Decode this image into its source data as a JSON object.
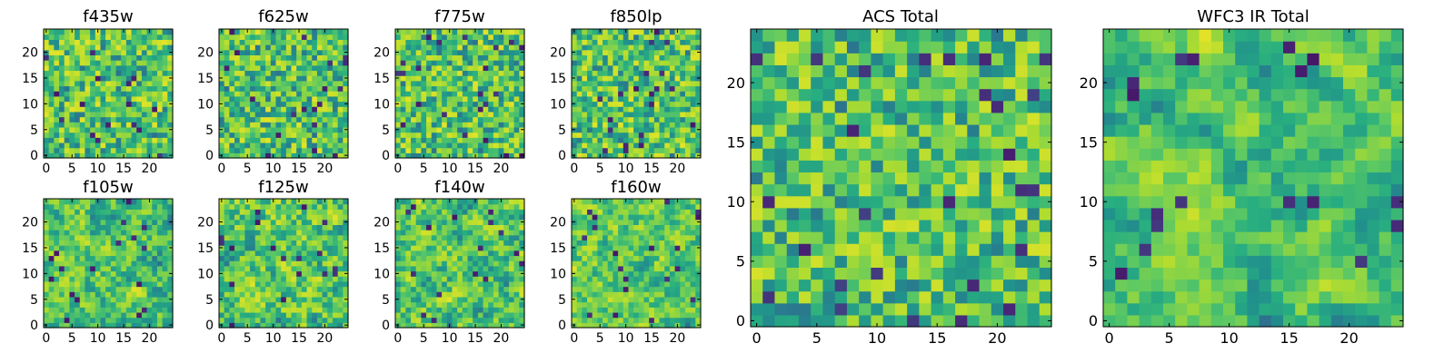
{
  "chart_data": [
    {
      "type": "heatmap",
      "title": "f435w",
      "grid_size": 25,
      "xlim": [
        0,
        24
      ],
      "ylim": [
        0,
        24
      ],
      "xticks": [
        0,
        5,
        10,
        15,
        20
      ],
      "yticks": [
        0,
        5,
        10,
        15,
        20
      ],
      "colormap": "viridis",
      "seed": 11,
      "smooth": 0,
      "contrast": 0.9
    },
    {
      "type": "heatmap",
      "title": "f625w",
      "grid_size": 25,
      "xlim": [
        0,
        24
      ],
      "ylim": [
        0,
        24
      ],
      "xticks": [
        0,
        5,
        10,
        15,
        20
      ],
      "yticks": [
        0,
        5,
        10,
        15,
        20
      ],
      "colormap": "viridis",
      "seed": 23,
      "smooth": 0,
      "contrast": 0.9
    },
    {
      "type": "heatmap",
      "title": "f775w",
      "grid_size": 25,
      "xlim": [
        0,
        24
      ],
      "ylim": [
        0,
        24
      ],
      "xticks": [
        0,
        5,
        10,
        15,
        20
      ],
      "yticks": [
        0,
        5,
        10,
        15,
        20
      ],
      "colormap": "viridis",
      "seed": 37,
      "smooth": 0,
      "contrast": 0.9
    },
    {
      "type": "heatmap",
      "title": "f850lp",
      "grid_size": 25,
      "xlim": [
        0,
        24
      ],
      "ylim": [
        0,
        24
      ],
      "xticks": [
        0,
        5,
        10,
        15,
        20
      ],
      "yticks": [
        0,
        5,
        10,
        15,
        20
      ],
      "colormap": "viridis",
      "seed": 41,
      "smooth": 0,
      "contrast": 0.9
    },
    {
      "type": "heatmap",
      "title": "f105w",
      "grid_size": 25,
      "xlim": [
        0,
        24
      ],
      "ylim": [
        0,
        24
      ],
      "xticks": [
        0,
        5,
        10,
        15,
        20
      ],
      "yticks": [
        0,
        5,
        10,
        15,
        20
      ],
      "colormap": "viridis",
      "seed": 53,
      "smooth": 1,
      "contrast": 0.9
    },
    {
      "type": "heatmap",
      "title": "f125w",
      "grid_size": 25,
      "xlim": [
        0,
        24
      ],
      "ylim": [
        0,
        24
      ],
      "xticks": [
        0,
        5,
        10,
        15,
        20
      ],
      "yticks": [
        0,
        5,
        10,
        15,
        20
      ],
      "colormap": "viridis",
      "seed": 67,
      "smooth": 1,
      "contrast": 0.9
    },
    {
      "type": "heatmap",
      "title": "f140w",
      "grid_size": 25,
      "xlim": [
        0,
        24
      ],
      "ylim": [
        0,
        24
      ],
      "xticks": [
        0,
        5,
        10,
        15,
        20
      ],
      "yticks": [
        0,
        5,
        10,
        15,
        20
      ],
      "colormap": "viridis",
      "seed": 71,
      "smooth": 1,
      "contrast": 0.9
    },
    {
      "type": "heatmap",
      "title": "f160w",
      "grid_size": 25,
      "xlim": [
        0,
        24
      ],
      "ylim": [
        0,
        24
      ],
      "xticks": [
        0,
        5,
        10,
        15,
        20
      ],
      "yticks": [
        0,
        5,
        10,
        15,
        20
      ],
      "colormap": "viridis",
      "seed": 83,
      "smooth": 1,
      "contrast": 0.9
    },
    {
      "type": "heatmap",
      "title": "ACS Total",
      "grid_size": 25,
      "xlim": [
        0,
        24
      ],
      "ylim": [
        0,
        24
      ],
      "xticks": [
        0,
        5,
        10,
        15,
        20
      ],
      "yticks": [
        0,
        5,
        10,
        15,
        20
      ],
      "colormap": "viridis",
      "seed": 97,
      "smooth": 0,
      "contrast": 0.85
    },
    {
      "type": "heatmap",
      "title": "WFC3 IR Total",
      "grid_size": 25,
      "xlim": [
        0,
        24
      ],
      "ylim": [
        0,
        24
      ],
      "xticks": [
        0,
        5,
        10,
        15,
        20
      ],
      "yticks": [
        0,
        5,
        10,
        15,
        20
      ],
      "colormap": "viridis",
      "seed": 101,
      "smooth": 2,
      "contrast": 0.9
    }
  ]
}
